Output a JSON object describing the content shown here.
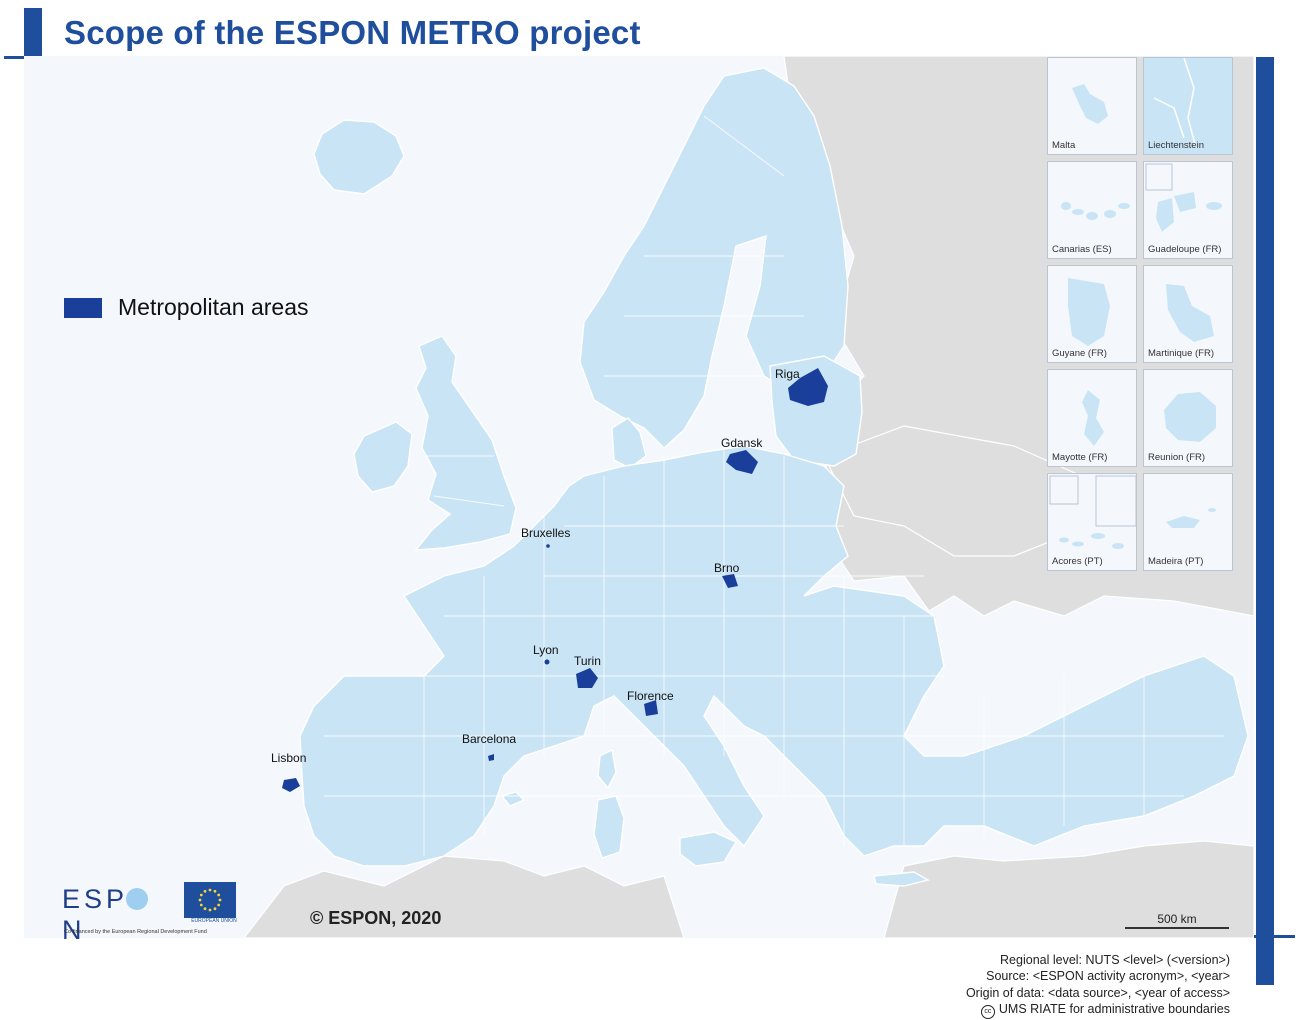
{
  "title": "Scope of the ESPON METRO project",
  "legend": {
    "label": "Metropolitan areas",
    "swatch_color": "#1a3f9a"
  },
  "colors": {
    "accent": "#1f4e9c",
    "espon_land": "#c9e4f5",
    "non_espon_land": "#dedede",
    "sea": "#f4f8fc",
    "metro": "#1a3f9a"
  },
  "cities": [
    {
      "name": "Riga"
    },
    {
      "name": "Gdansk"
    },
    {
      "name": "Bruxelles"
    },
    {
      "name": "Brno"
    },
    {
      "name": "Lyon"
    },
    {
      "name": "Turin"
    },
    {
      "name": "Florence"
    },
    {
      "name": "Barcelona"
    },
    {
      "name": "Lisbon"
    }
  ],
  "insets": [
    {
      "name": "Malta"
    },
    {
      "name": "Liechtenstein"
    },
    {
      "name": "Canarias (ES)"
    },
    {
      "name": "Guadeloupe (FR)"
    },
    {
      "name": "Guyane (FR)"
    },
    {
      "name": "Martinique (FR)"
    },
    {
      "name": "Mayotte (FR)"
    },
    {
      "name": "Reunion (FR)"
    },
    {
      "name": "Acores (PT)"
    },
    {
      "name": "Madeira (PT)"
    }
  ],
  "copyright": "© ESPON, 2020",
  "scale": {
    "label": "500 km"
  },
  "footer": {
    "line1": "Regional level: NUTS <level> (<version>)",
    "line2": "Source: <ESPON activity acronym>, <year>",
    "line3": "Origin of data: <data source>, <year of access>",
    "line4": "UMS RIATE for administrative boundaries"
  },
  "logos": {
    "espon_a": "ESP",
    "espon_b": "N",
    "eu_caption": "EUROPEAN UNION",
    "cofinanced": "Co-financed by the European Regional Development Fund",
    "cc_mark": "cc"
  }
}
